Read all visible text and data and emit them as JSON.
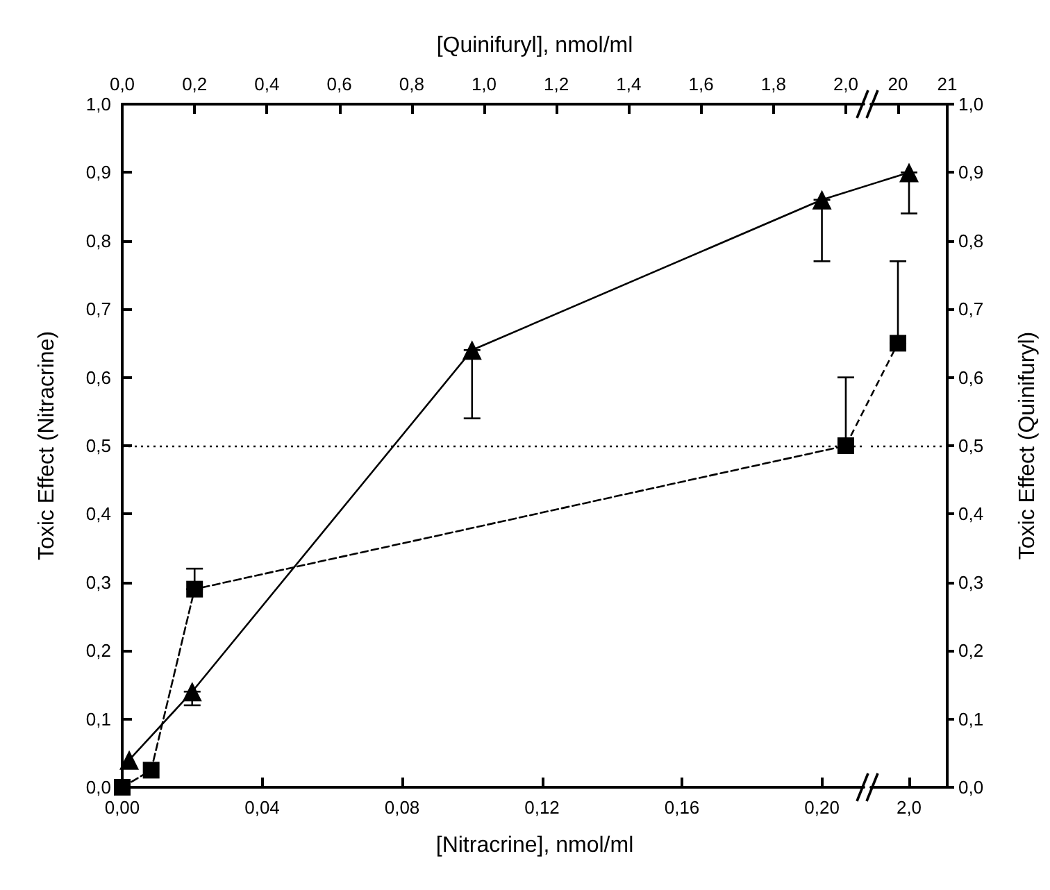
{
  "chart_data": [
    {
      "type": "line",
      "xlabel": "[Nitracrine], nmol/ml",
      "x2label": "[Quinifuryl], nmol/ml",
      "ylabel": "Toxic Effect (Nitracrine)",
      "series": [
        {
          "x": [
            0.002,
            0.02,
            0.1,
            0.2
          ],
          "values": [
            0.04,
            0.14,
            0.64,
            0.86
          ],
          "errors": [
            null,
            [
              0.12,
              0.14
            ],
            [
              0.54,
              0.64
            ],
            [
              0.77,
              0.86
            ]
          ],
          "color": "#000000",
          "marker": "triangle",
          "line_style": "solid"
        },
        {
          "x": [
            0.0,
            0.08,
            0.2,
            2.0
          ],
          "values": [
            0.0,
            0.025,
            0.29,
            0.5
          ],
          "errors": [
            null,
            null,
            [
              0.29,
              0.32
            ],
            [
              0.5,
              0.6
            ]
          ],
          "color": "#000000",
          "marker": "square",
          "line_style": "dashed",
          "axis": "x2"
        }
      ],
      "xlim": [
        0,
        0.212
      ],
      "xticks": [
        {
          "value": 0,
          "label": "0,00"
        },
        {
          "value": 0.04,
          "label": "0,04"
        },
        {
          "value": 0.08,
          "label": "0,08"
        },
        {
          "value": 0.12,
          "label": "0,12"
        },
        {
          "value": 0.16,
          "label": "0,16"
        },
        {
          "value": 0.2,
          "label": "0,20"
        }
      ],
      "x2lim": [
        0,
        2.05
      ],
      "x2ticks": [
        {
          "value": 0,
          "label": "0,0"
        },
        {
          "value": 0.2,
          "label": "0,2"
        },
        {
          "value": 0.4,
          "label": "0,4"
        },
        {
          "value": 0.6,
          "label": "0,6"
        },
        {
          "value": 0.8,
          "label": "0,8"
        },
        {
          "value": 1.0,
          "label": "1,0"
        },
        {
          "value": 1.2,
          "label": "1,2"
        },
        {
          "value": 1.4,
          "label": "1,4"
        },
        {
          "value": 1.6,
          "label": "1,6"
        },
        {
          "value": 1.8,
          "label": "1,8"
        },
        {
          "value": 2.0,
          "label": "2,0"
        }
      ],
      "ylim": [
        0,
        1
      ],
      "yticks": [
        {
          "value": 0,
          "label": "0,0"
        },
        {
          "value": 0.1,
          "label": "0,1"
        },
        {
          "value": 0.2,
          "label": "0,2"
        },
        {
          "value": 0.3,
          "label": "0,3"
        },
        {
          "value": 0.4,
          "label": "0,4"
        },
        {
          "value": 0.5,
          "label": "0,5"
        },
        {
          "value": 0.6,
          "label": "0,6"
        },
        {
          "value": 0.7,
          "label": "0,7"
        },
        {
          "value": 0.8,
          "label": "0,8"
        },
        {
          "value": 0.9,
          "label": "0,9"
        },
        {
          "value": 1.0,
          "label": "1,0"
        }
      ],
      "ref_lines": [
        {
          "axis": "y",
          "value": 0.5,
          "color": "#000000",
          "line_style": "dotted"
        }
      ],
      "grid": false
    },
    {
      "type": "line",
      "ylabel": "Toxic Effect (Quinifuryl)",
      "categories": [
        "2,0"
      ],
      "series": [
        {
          "values": [
            0.9
          ],
          "errors": [
            [
              0.84,
              0.9
            ]
          ],
          "color": "#000000",
          "marker": "triangle",
          "line_style": "solid"
        },
        {
          "x": [
            20
          ],
          "values": [
            0.65
          ],
          "errors": [
            [
              0.65,
              0.77
            ]
          ],
          "color": "#000000",
          "marker": "square",
          "line_style": "dashed",
          "axis": "x2"
        }
      ],
      "x2lim": [
        19.45,
        21
      ],
      "x2ticks": [
        20,
        21
      ],
      "ylim": [
        0,
        1
      ],
      "yticks": [
        {
          "value": 0,
          "label": "0,0"
        },
        {
          "value": 0.1,
          "label": "0,1"
        },
        {
          "value": 0.2,
          "label": "0,2"
        },
        {
          "value": 0.3,
          "label": "0,3"
        },
        {
          "value": 0.4,
          "label": "0,4"
        },
        {
          "value": 0.5,
          "label": "0,5"
        },
        {
          "value": 0.6,
          "label": "0,6"
        },
        {
          "value": 0.7,
          "label": "0,7"
        },
        {
          "value": 0.8,
          "label": "0,8"
        },
        {
          "value": 0.9,
          "label": "0,9"
        },
        {
          "value": 1.0,
          "label": "1,0"
        }
      ],
      "ref_lines": [
        {
          "axis": "y",
          "value": 0.5,
          "color": "#000000",
          "line_style": "dotted"
        }
      ],
      "grid": false
    }
  ]
}
